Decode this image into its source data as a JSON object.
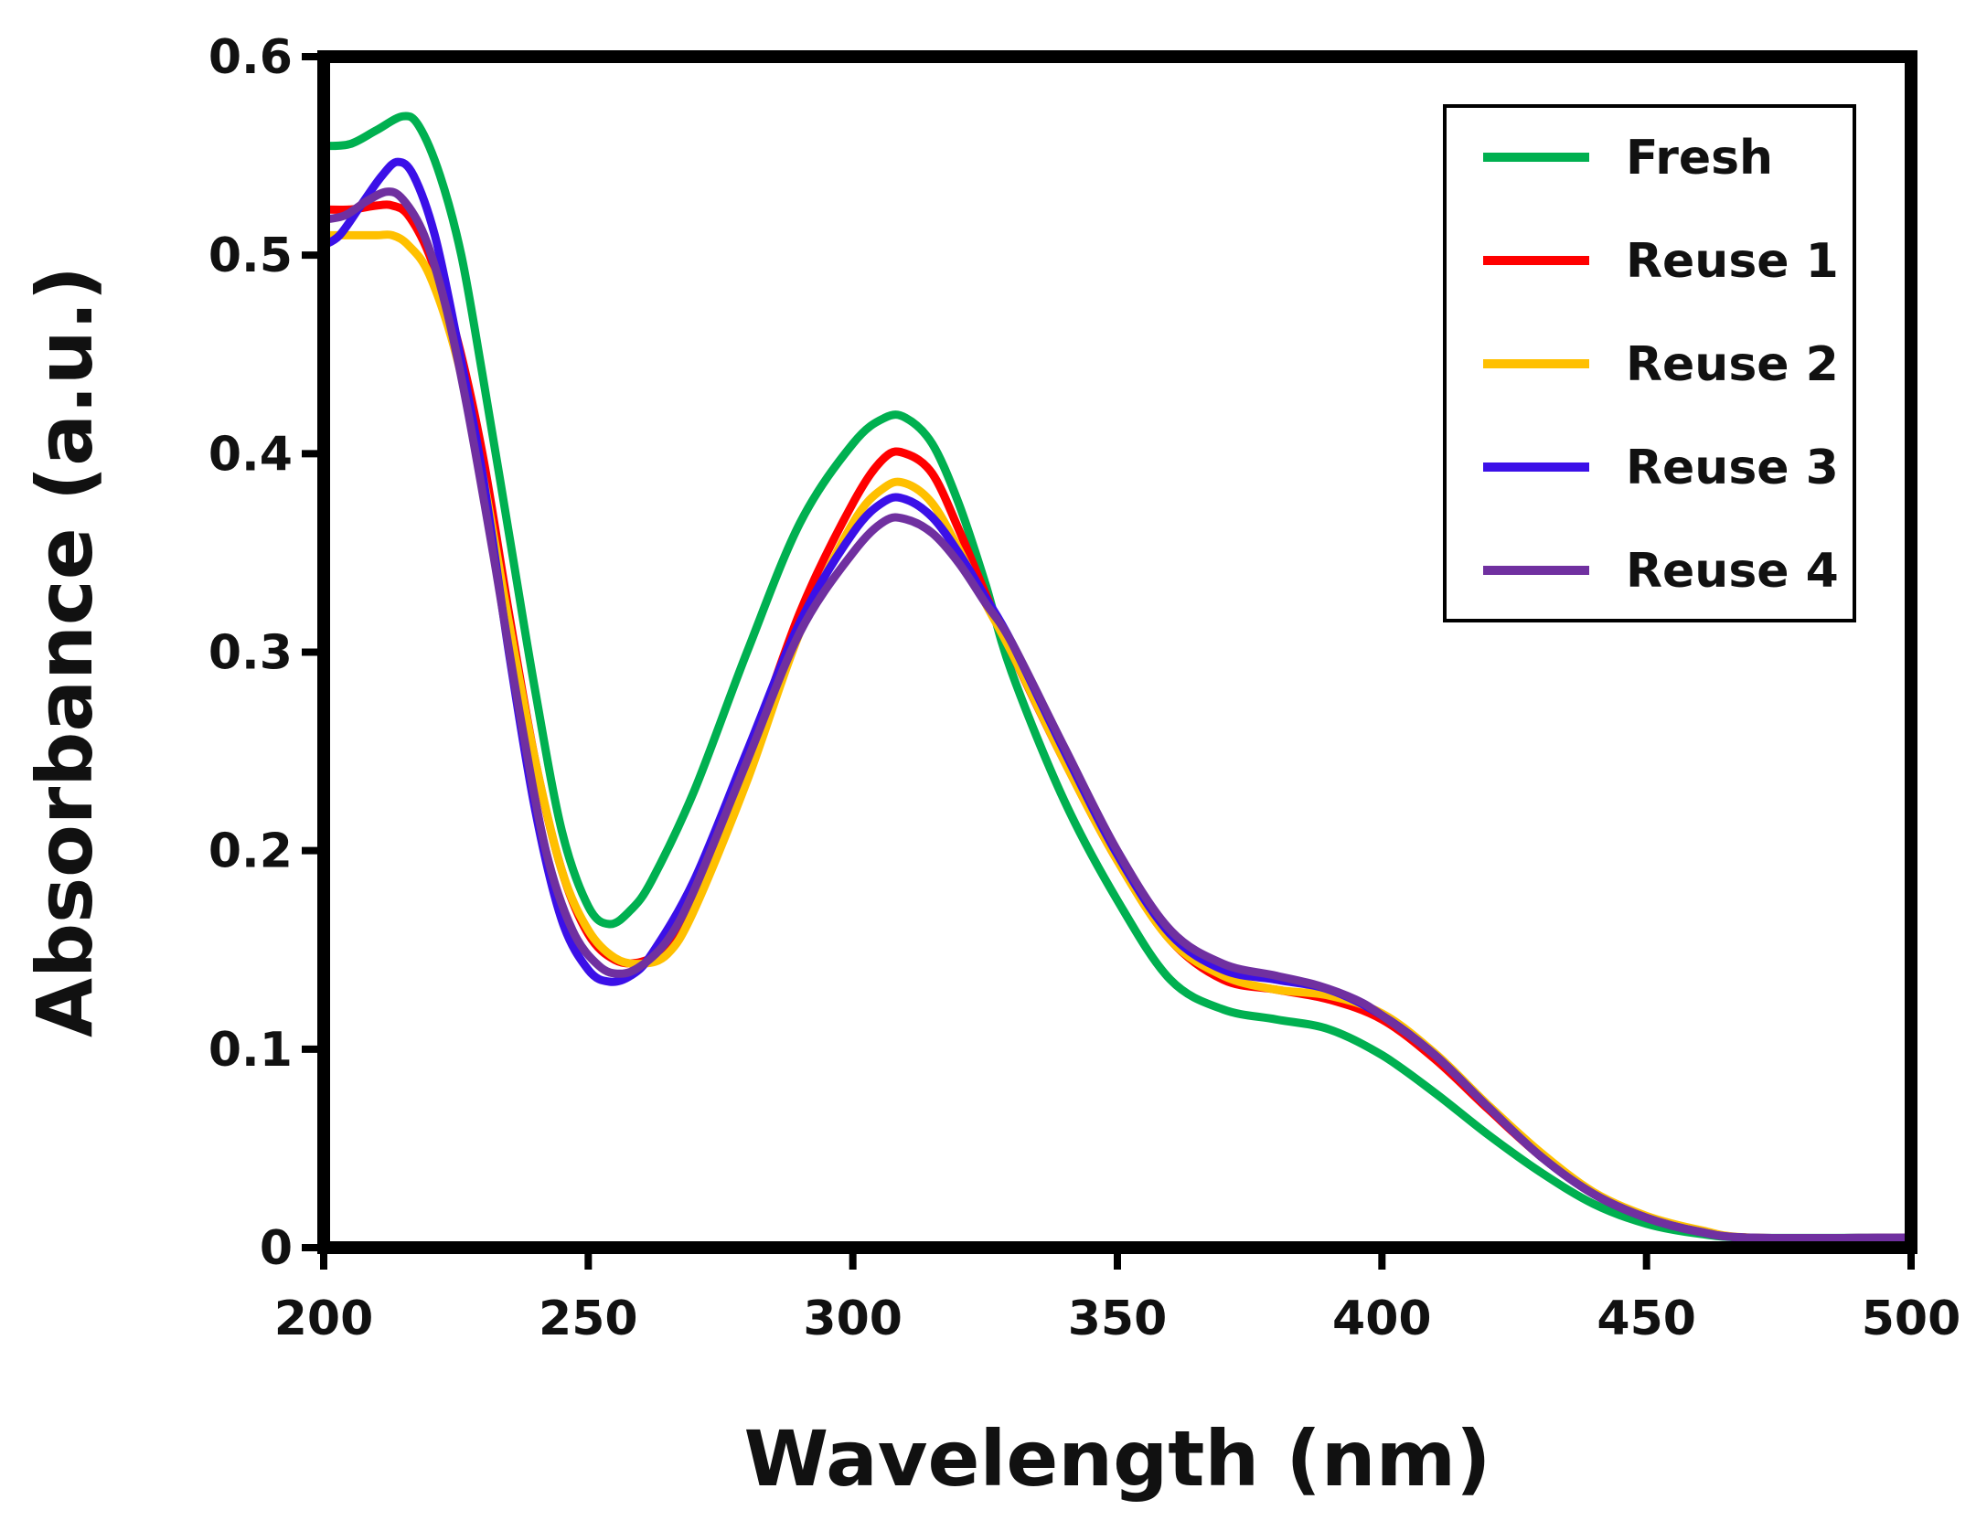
{
  "chart_data": {
    "type": "line",
    "title": "",
    "xlabel": "Wavelength (nm)",
    "ylabel": "Absorbance (a.u.)",
    "xlim": [
      200,
      500
    ],
    "ylim": [
      0,
      0.6
    ],
    "xticks": [
      200,
      250,
      300,
      350,
      400,
      450,
      500
    ],
    "yticks": [
      0,
      0.1,
      0.2,
      0.3,
      0.4,
      0.5,
      0.6
    ],
    "xtick_labels": [
      "200",
      "250",
      "300",
      "350",
      "400",
      "450",
      "500"
    ],
    "ytick_labels": [
      "0",
      "0.1",
      "0.2",
      "0.3",
      "0.4",
      "0.5",
      "0.6"
    ],
    "grid": false,
    "legend_position": "top-right",
    "series": [
      {
        "name": "Fresh",
        "color": "#00b050",
        "points": [
          [
            200,
            0.555
          ],
          [
            205,
            0.556
          ],
          [
            210,
            0.563
          ],
          [
            215,
            0.57
          ],
          [
            218,
            0.565
          ],
          [
            222,
            0.54
          ],
          [
            226,
            0.5
          ],
          [
            230,
            0.44
          ],
          [
            235,
            0.36
          ],
          [
            240,
            0.28
          ],
          [
            245,
            0.21
          ],
          [
            250,
            0.172
          ],
          [
            254,
            0.163
          ],
          [
            258,
            0.17
          ],
          [
            262,
            0.185
          ],
          [
            270,
            0.23
          ],
          [
            280,
            0.3
          ],
          [
            290,
            0.365
          ],
          [
            300,
            0.405
          ],
          [
            306,
            0.418
          ],
          [
            310,
            0.418
          ],
          [
            315,
            0.405
          ],
          [
            320,
            0.375
          ],
          [
            325,
            0.335
          ],
          [
            330,
            0.29
          ],
          [
            340,
            0.225
          ],
          [
            350,
            0.175
          ],
          [
            360,
            0.135
          ],
          [
            370,
            0.12
          ],
          [
            380,
            0.115
          ],
          [
            390,
            0.11
          ],
          [
            400,
            0.097
          ],
          [
            410,
            0.078
          ],
          [
            420,
            0.057
          ],
          [
            430,
            0.038
          ],
          [
            440,
            0.022
          ],
          [
            450,
            0.012
          ],
          [
            460,
            0.007
          ],
          [
            470,
            0.005
          ],
          [
            500,
            0.005
          ]
        ]
      },
      {
        "name": "Reuse 1",
        "color": "#ff0000",
        "points": [
          [
            200,
            0.523
          ],
          [
            205,
            0.523
          ],
          [
            210,
            0.525
          ],
          [
            213,
            0.525
          ],
          [
            216,
            0.52
          ],
          [
            220,
            0.5
          ],
          [
            225,
            0.46
          ],
          [
            230,
            0.4
          ],
          [
            235,
            0.32
          ],
          [
            240,
            0.245
          ],
          [
            245,
            0.19
          ],
          [
            250,
            0.158
          ],
          [
            255,
            0.145
          ],
          [
            260,
            0.144
          ],
          [
            265,
            0.152
          ],
          [
            270,
            0.175
          ],
          [
            280,
            0.245
          ],
          [
            290,
            0.32
          ],
          [
            300,
            0.375
          ],
          [
            306,
            0.398
          ],
          [
            310,
            0.4
          ],
          [
            315,
            0.39
          ],
          [
            320,
            0.362
          ],
          [
            325,
            0.33
          ],
          [
            330,
            0.3
          ],
          [
            340,
            0.245
          ],
          [
            350,
            0.195
          ],
          [
            360,
            0.155
          ],
          [
            370,
            0.135
          ],
          [
            380,
            0.13
          ],
          [
            390,
            0.125
          ],
          [
            400,
            0.115
          ],
          [
            410,
            0.095
          ],
          [
            420,
            0.07
          ],
          [
            430,
            0.046
          ],
          [
            440,
            0.027
          ],
          [
            450,
            0.015
          ],
          [
            460,
            0.008
          ],
          [
            470,
            0.005
          ],
          [
            500,
            0.005
          ]
        ]
      },
      {
        "name": "Reuse 2",
        "color": "#ffc000",
        "points": [
          [
            200,
            0.51
          ],
          [
            205,
            0.51
          ],
          [
            210,
            0.51
          ],
          [
            213,
            0.51
          ],
          [
            216,
            0.505
          ],
          [
            220,
            0.49
          ],
          [
            225,
            0.45
          ],
          [
            230,
            0.39
          ],
          [
            235,
            0.315
          ],
          [
            240,
            0.245
          ],
          [
            245,
            0.19
          ],
          [
            250,
            0.16
          ],
          [
            255,
            0.146
          ],
          [
            260,
            0.143
          ],
          [
            265,
            0.148
          ],
          [
            270,
            0.17
          ],
          [
            280,
            0.235
          ],
          [
            290,
            0.31
          ],
          [
            300,
            0.365
          ],
          [
            306,
            0.383
          ],
          [
            310,
            0.385
          ],
          [
            315,
            0.375
          ],
          [
            320,
            0.352
          ],
          [
            325,
            0.325
          ],
          [
            330,
            0.3
          ],
          [
            340,
            0.245
          ],
          [
            350,
            0.195
          ],
          [
            360,
            0.155
          ],
          [
            370,
            0.137
          ],
          [
            380,
            0.13
          ],
          [
            390,
            0.127
          ],
          [
            400,
            0.118
          ],
          [
            410,
            0.098
          ],
          [
            420,
            0.072
          ],
          [
            430,
            0.048
          ],
          [
            440,
            0.028
          ],
          [
            450,
            0.016
          ],
          [
            460,
            0.009
          ],
          [
            470,
            0.005
          ],
          [
            500,
            0.005
          ]
        ]
      },
      {
        "name": "Reuse 3",
        "color": "#3b10e8",
        "points": [
          [
            200,
            0.505
          ],
          [
            203,
            0.51
          ],
          [
            207,
            0.525
          ],
          [
            211,
            0.54
          ],
          [
            214,
            0.547
          ],
          [
            217,
            0.54
          ],
          [
            221,
            0.51
          ],
          [
            225,
            0.46
          ],
          [
            230,
            0.39
          ],
          [
            235,
            0.3
          ],
          [
            240,
            0.22
          ],
          [
            245,
            0.165
          ],
          [
            250,
            0.14
          ],
          [
            254,
            0.134
          ],
          [
            258,
            0.137
          ],
          [
            262,
            0.148
          ],
          [
            270,
            0.185
          ],
          [
            280,
            0.25
          ],
          [
            290,
            0.315
          ],
          [
            300,
            0.36
          ],
          [
            306,
            0.376
          ],
          [
            310,
            0.377
          ],
          [
            315,
            0.368
          ],
          [
            320,
            0.35
          ],
          [
            325,
            0.328
          ],
          [
            330,
            0.305
          ],
          [
            340,
            0.25
          ],
          [
            350,
            0.198
          ],
          [
            360,
            0.158
          ],
          [
            370,
            0.14
          ],
          [
            380,
            0.135
          ],
          [
            390,
            0.13
          ],
          [
            400,
            0.117
          ],
          [
            410,
            0.097
          ],
          [
            420,
            0.071
          ],
          [
            430,
            0.046
          ],
          [
            440,
            0.027
          ],
          [
            450,
            0.015
          ],
          [
            460,
            0.008
          ],
          [
            470,
            0.005
          ],
          [
            500,
            0.005
          ]
        ]
      },
      {
        "name": "Reuse 4",
        "color": "#7030a0",
        "points": [
          [
            200,
            0.518
          ],
          [
            204,
            0.52
          ],
          [
            208,
            0.527
          ],
          [
            212,
            0.532
          ],
          [
            215,
            0.528
          ],
          [
            219,
            0.51
          ],
          [
            223,
            0.475
          ],
          [
            227,
            0.425
          ],
          [
            232,
            0.35
          ],
          [
            237,
            0.27
          ],
          [
            242,
            0.2
          ],
          [
            247,
            0.16
          ],
          [
            252,
            0.142
          ],
          [
            256,
            0.138
          ],
          [
            260,
            0.142
          ],
          [
            265,
            0.155
          ],
          [
            270,
            0.18
          ],
          [
            280,
            0.245
          ],
          [
            290,
            0.31
          ],
          [
            300,
            0.35
          ],
          [
            306,
            0.366
          ],
          [
            310,
            0.367
          ],
          [
            315,
            0.36
          ],
          [
            320,
            0.345
          ],
          [
            325,
            0.325
          ],
          [
            330,
            0.305
          ],
          [
            340,
            0.252
          ],
          [
            350,
            0.2
          ],
          [
            360,
            0.16
          ],
          [
            370,
            0.143
          ],
          [
            380,
            0.137
          ],
          [
            388,
            0.132
          ],
          [
            395,
            0.125
          ],
          [
            400,
            0.117
          ],
          [
            410,
            0.097
          ],
          [
            420,
            0.071
          ],
          [
            430,
            0.046
          ],
          [
            440,
            0.027
          ],
          [
            450,
            0.015
          ],
          [
            460,
            0.008
          ],
          [
            470,
            0.005
          ],
          [
            500,
            0.005
          ]
        ]
      }
    ]
  }
}
